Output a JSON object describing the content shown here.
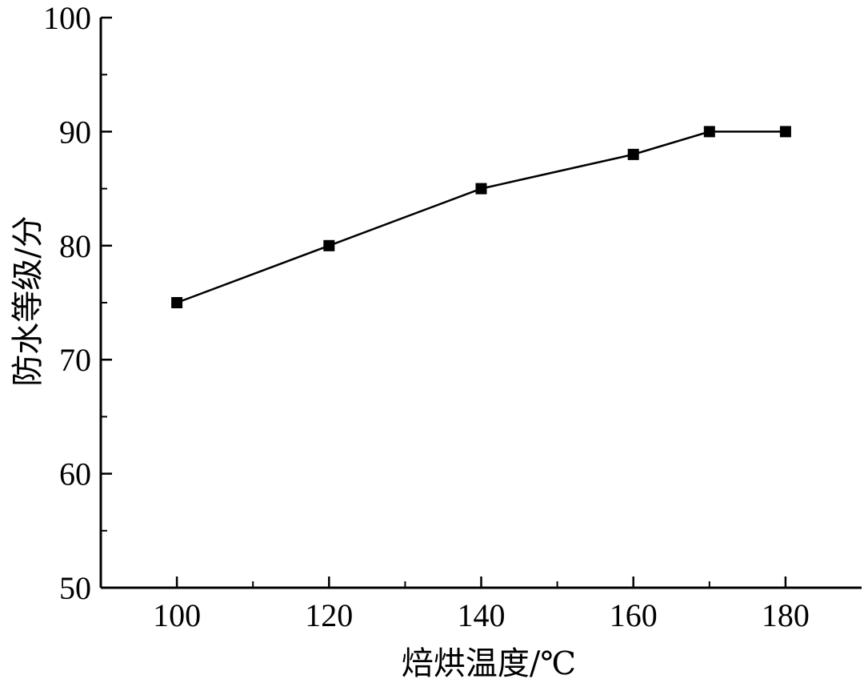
{
  "chart_data": {
    "type": "line",
    "title": "",
    "xlabel": "焙烘温度/℃",
    "ylabel": "防水等级/分",
    "xlim": [
      90,
      190
    ],
    "ylim": [
      50,
      100
    ],
    "x_ticks": [
      100,
      120,
      140,
      160,
      180
    ],
    "y_ticks": [
      50,
      60,
      70,
      80,
      90,
      100
    ],
    "grid": false,
    "series": [
      {
        "x": [
          100,
          120,
          140,
          160,
          170,
          180
        ],
        "y": [
          75,
          80,
          85,
          88,
          90,
          90
        ],
        "marker": "square",
        "color": "#000000"
      }
    ]
  }
}
